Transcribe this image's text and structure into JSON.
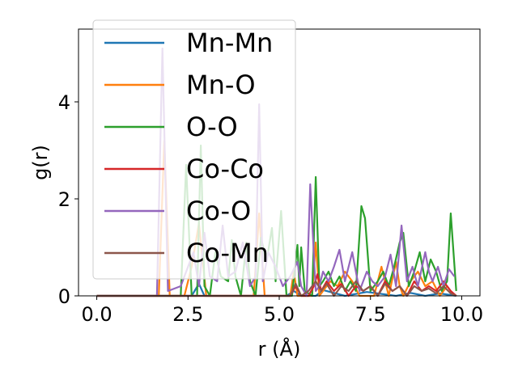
{
  "chart_data": {
    "type": "line",
    "xlabel": "r (Å)",
    "ylabel": "g(r)",
    "xlim": [
      -0.5,
      10.5
    ],
    "ylim": [
      0,
      5.5
    ],
    "xticks": [
      "0.0",
      "2.5",
      "5.0",
      "7.5",
      "10.0"
    ],
    "xtick_values": [
      0,
      2.5,
      5,
      7.5,
      10
    ],
    "yticks": [
      "0",
      "2",
      "4"
    ],
    "ytick_values": [
      0,
      2,
      4
    ],
    "grid": false,
    "legend_placement": "upper-left",
    "series": [
      {
        "name": "Mn-Mn",
        "color": "#1f77b4",
        "x": [
          0,
          2.6,
          2.8,
          2.95,
          3.5,
          5.2,
          5.4,
          5.6,
          6.0,
          6.2,
          6.8,
          7.4,
          8.2,
          8.6,
          9.0,
          9.4,
          9.85
        ],
        "y": [
          0,
          0,
          0.25,
          0,
          0,
          0,
          0.1,
          0,
          0,
          0.12,
          0,
          0.08,
          0,
          0.06,
          0,
          0.05,
          0
        ]
      },
      {
        "name": "Mn-O",
        "color": "#ff7f0e",
        "x": [
          0,
          1.7,
          1.85,
          2.0,
          2.4,
          2.6,
          2.8,
          3.0,
          4.3,
          4.45,
          4.6,
          5.3,
          5.4,
          5.5,
          5.9,
          6.0,
          6.1,
          6.4,
          6.6,
          6.8,
          7.0,
          7.2,
          7.6,
          7.8,
          8.0,
          8.2,
          8.3,
          8.4,
          8.6,
          8.8,
          9.0,
          9.2,
          9.4,
          9.6,
          9.8
        ],
        "y": [
          0,
          0,
          3.2,
          0,
          0,
          0.6,
          1.5,
          0,
          0,
          1.7,
          0,
          0,
          0.5,
          0,
          0,
          1.1,
          0,
          0.3,
          0.2,
          0.5,
          0.3,
          0,
          0,
          0.6,
          0,
          0.7,
          0.2,
          0,
          0.3,
          0.5,
          0.2,
          0.3,
          0,
          0.2,
          0
        ]
      },
      {
        "name": "O-O",
        "color": "#2ca02c",
        "x": [
          0,
          2.3,
          2.45,
          2.6,
          2.75,
          2.85,
          2.95,
          3.1,
          3.25,
          3.4,
          3.6,
          3.7,
          3.8,
          3.95,
          4.1,
          4.2,
          4.35,
          4.5,
          4.65,
          4.8,
          4.9,
          5.05,
          5.2,
          5.35,
          5.5,
          5.55,
          5.6,
          5.7,
          5.9,
          6.0,
          6.1,
          6.2,
          6.35,
          6.5,
          6.65,
          6.8,
          6.95,
          7.1,
          7.25,
          7.35,
          7.5,
          7.7,
          7.85,
          8.0,
          8.15,
          8.3,
          8.4,
          8.55,
          8.7,
          8.85,
          9.0,
          9.15,
          9.3,
          9.45,
          9.6,
          9.7,
          9.85
        ],
        "y": [
          0,
          0,
          2.7,
          0,
          0,
          3.1,
          0.2,
          0,
          0.9,
          0.4,
          0.3,
          1.15,
          0.4,
          0,
          1.1,
          0.3,
          0,
          1.2,
          0.7,
          1.4,
          0.3,
          1.75,
          0,
          0,
          1.05,
          0.2,
          1.0,
          0.1,
          0,
          2.45,
          0.2,
          0.3,
          0.5,
          0.2,
          0.4,
          0.1,
          0.3,
          0.1,
          1.85,
          1.6,
          0.1,
          0.3,
          0.5,
          0.2,
          0.6,
          1.1,
          1.3,
          0.2,
          0.5,
          0.9,
          0.3,
          0.75,
          0.5,
          0.1,
          0.3,
          1.7,
          0.1
        ]
      },
      {
        "name": "Co-Co",
        "color": "#d62728",
        "x": [
          0,
          5.3,
          5.45,
          5.6,
          5.8,
          5.95,
          6.05,
          6.15,
          6.3,
          6.5,
          6.7,
          6.9,
          7.1,
          7.3,
          7.5,
          7.7,
          7.9,
          8.1,
          8.3,
          8.5,
          8.7,
          8.9,
          9.1,
          9.3,
          9.5,
          9.7,
          9.85
        ],
        "y": [
          0,
          0,
          0.2,
          0,
          0,
          0.2,
          0.45,
          0.1,
          0.3,
          0.1,
          0.25,
          0,
          0.2,
          0.1,
          0.2,
          0,
          0.3,
          0.1,
          0.2,
          0,
          0.3,
          0.1,
          0.2,
          0.1,
          0.3,
          0.1,
          0
        ]
      },
      {
        "name": "Co-O",
        "color": "#9467bd",
        "x": [
          0,
          1.65,
          1.8,
          1.95,
          2.3,
          2.5,
          2.65,
          2.8,
          2.95,
          3.1,
          3.3,
          3.45,
          3.6,
          3.8,
          4.0,
          4.2,
          4.35,
          4.45,
          4.55,
          4.7,
          4.9,
          5.1,
          5.3,
          5.5,
          5.6,
          5.75,
          5.85,
          6.0,
          6.1,
          6.2,
          6.35,
          6.5,
          6.65,
          6.8,
          7.0,
          7.2,
          7.4,
          7.55,
          7.7,
          7.9,
          8.05,
          8.2,
          8.35,
          8.5,
          8.65,
          8.8,
          9.0,
          9.1,
          9.2,
          9.35,
          9.5,
          9.65,
          9.8
        ],
        "y": [
          0,
          0,
          5.1,
          0.1,
          0.2,
          0.6,
          0.9,
          0.2,
          1.3,
          0.4,
          0.3,
          1.45,
          0.4,
          0.5,
          1.1,
          0.2,
          0.4,
          3.95,
          0.3,
          0.9,
          0.6,
          0.2,
          0.4,
          0.7,
          0.2,
          0,
          2.3,
          0.1,
          0.2,
          0.5,
          0.3,
          0.6,
          0.95,
          0.3,
          0.9,
          0.1,
          0.5,
          0.3,
          0.2,
          0.4,
          0.85,
          0.2,
          1.45,
          0.3,
          0.6,
          0.2,
          0.9,
          0.5,
          0.3,
          0.6,
          0.2,
          0.55,
          0.4
        ]
      },
      {
        "name": "Co-Mn",
        "color": "#8c564b",
        "x": [
          0,
          5.3,
          5.45,
          5.6,
          5.8,
          6.0,
          6.15,
          6.3,
          6.5,
          6.7,
          6.9,
          7.1,
          7.3,
          7.5,
          7.7,
          7.9,
          8.1,
          8.3,
          8.5,
          8.7,
          8.9,
          9.1,
          9.3,
          9.5,
          9.7,
          9.85
        ],
        "y": [
          0,
          0,
          0.25,
          0,
          0.1,
          0.3,
          0.1,
          0.25,
          0,
          0.2,
          0.1,
          0.3,
          0.1,
          0.2,
          0,
          0.25,
          0.1,
          0.2,
          0,
          0.2,
          0.1,
          0.15,
          0.05,
          0.2,
          0.05,
          0
        ]
      }
    ]
  }
}
